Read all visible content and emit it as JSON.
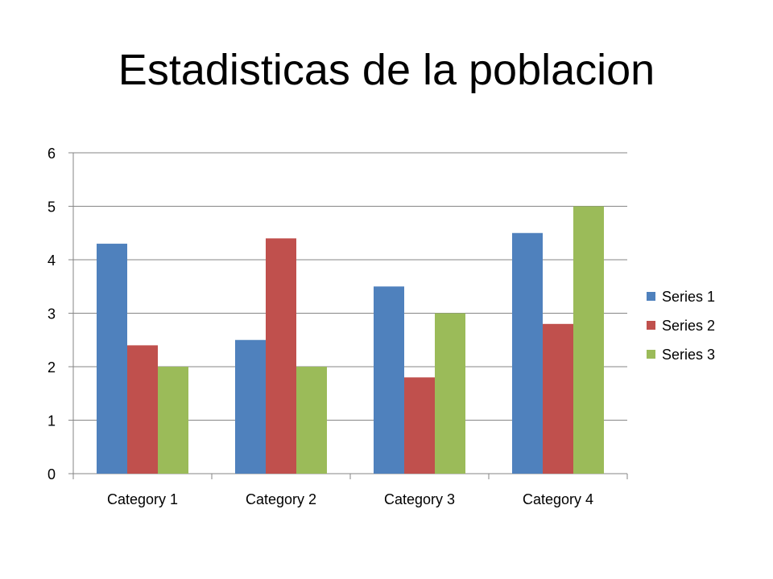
{
  "slide": {
    "title": "Estadisticas de la poblacion"
  },
  "chart_data": {
    "type": "bar",
    "title": "",
    "xlabel": "",
    "ylabel": "",
    "categories": [
      "Category 1",
      "Category 2",
      "Category 3",
      "Category 4"
    ],
    "series": [
      {
        "name": "Series 1",
        "color": "#4F81BD",
        "values": [
          4.3,
          2.5,
          3.5,
          4.5
        ]
      },
      {
        "name": "Series 2",
        "color": "#C0504D",
        "values": [
          2.4,
          4.4,
          1.8,
          2.8
        ]
      },
      {
        "name": "Series 3",
        "color": "#9BBB59",
        "values": [
          2,
          2,
          3,
          5
        ]
      }
    ],
    "ylim": [
      0,
      6
    ],
    "yticks": [
      0,
      1,
      2,
      3,
      4,
      5,
      6
    ],
    "grid": true,
    "legend": "right"
  }
}
